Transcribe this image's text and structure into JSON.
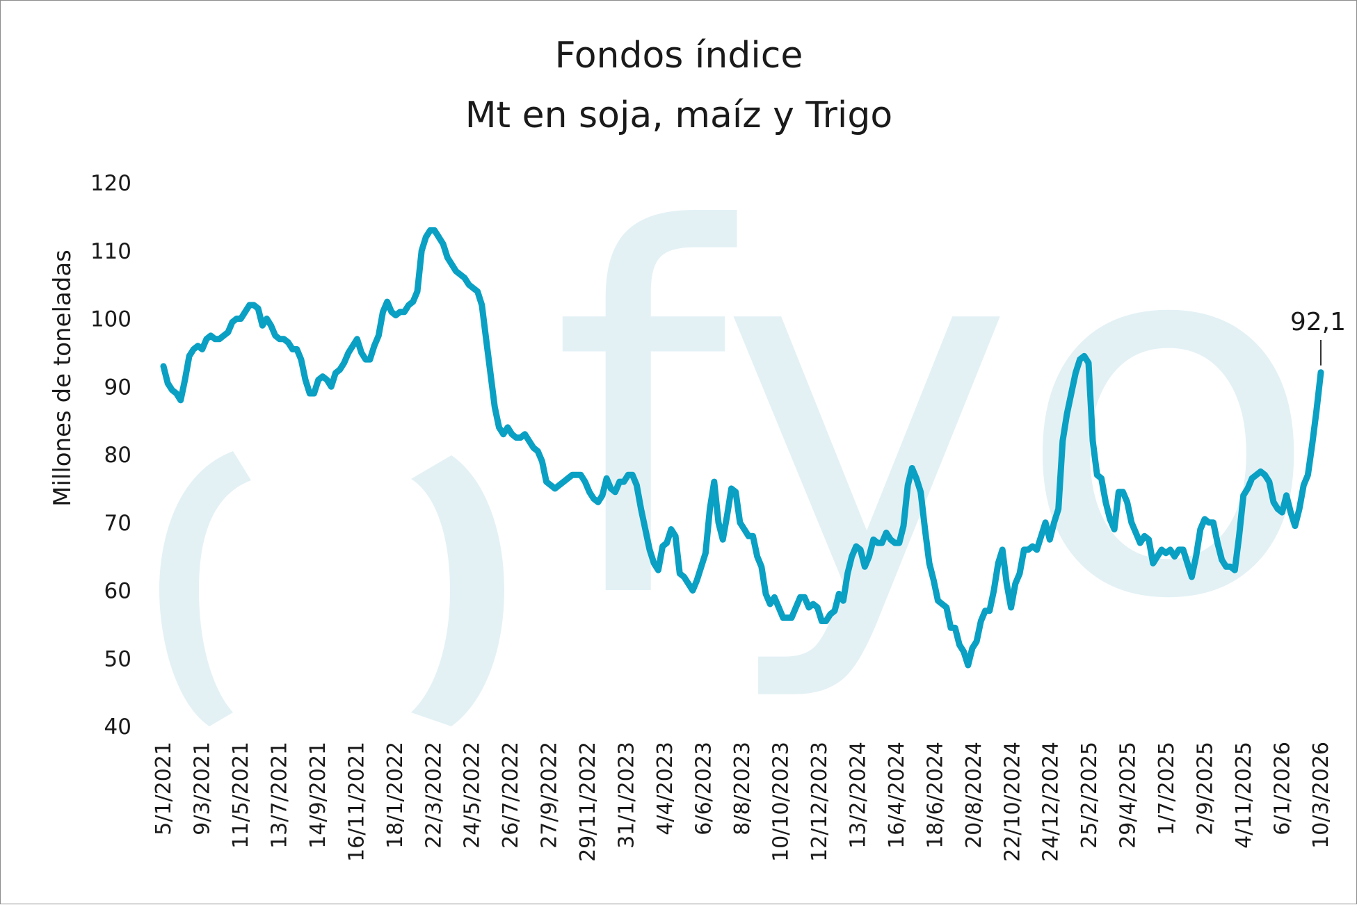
{
  "watermark": {
    "text": "fyo",
    "color": "#e3f1f5"
  },
  "chart_data": {
    "type": "line",
    "title": "Fondos índice",
    "subtitle": "Mt en soja, maíz y Trigo",
    "ylabel": "Millones de toneladas",
    "xlabel": "",
    "ylim": [
      40,
      120
    ],
    "yticks": [
      40,
      50,
      60,
      70,
      80,
      90,
      100,
      110,
      120
    ],
    "grid": false,
    "line_color": "#0aa0c4",
    "x_tick_labels": [
      "5/1/2021",
      "9/3/2021",
      "11/5/2021",
      "13/7/2021",
      "14/9/2021",
      "16/11/2021",
      "18/1/2022",
      "22/3/2022",
      "24/5/2022",
      "26/7/2022",
      "27/9/2022",
      "29/11/2022",
      "31/1/2023",
      "4/4/2023",
      "6/6/2023",
      "8/8/2023",
      "10/10/2023",
      "12/12/2023",
      "13/2/2024",
      "16/4/2024",
      "18/6/2024",
      "20/8/2024",
      "22/10/2024",
      "24/12/2024",
      "25/2/2025",
      "29/4/2025",
      "1/7/2025",
      "2/9/2025",
      "4/11/2025",
      "6/1/2026",
      "10/3/2026"
    ],
    "series": [
      {
        "values": [
          93,
          90.5,
          89.5,
          89,
          88,
          91,
          94.5,
          95.5,
          96,
          95.5,
          97,
          97.5,
          97,
          97,
          97.5,
          98,
          99.5,
          100,
          100,
          101,
          102,
          102,
          101.5,
          99,
          100,
          99,
          97.5,
          97,
          97,
          96.5,
          95.5,
          95.5,
          94,
          91,
          89,
          89,
          91,
          91.5,
          91,
          90,
          92,
          92.5,
          93.5,
          95,
          96,
          97,
          95,
          94,
          94,
          96,
          97.5,
          101,
          102.5,
          101,
          100.5,
          101,
          101,
          102,
          102.5,
          104,
          110,
          112,
          113,
          113,
          112,
          111,
          109,
          108,
          107,
          106.5,
          106,
          105,
          104.5,
          104,
          102,
          97,
          92,
          87,
          84,
          83,
          84,
          83,
          82.5,
          82.5,
          83,
          82,
          81,
          80.5,
          79,
          76,
          75.5,
          75,
          75.5,
          76,
          76.5,
          77,
          77,
          77,
          76,
          74.5,
          73.5,
          73,
          74,
          76.5,
          75,
          74.5,
          76,
          76,
          77,
          77,
          75.5,
          72,
          69,
          66,
          64,
          63,
          66.5,
          67,
          69,
          68,
          62.5,
          62,
          61,
          60,
          61.5,
          63.5,
          65.5,
          72,
          76,
          70,
          67.5,
          71,
          75,
          74.5,
          70,
          69,
          68,
          68,
          65,
          63.5,
          59.5,
          58,
          59,
          57.5,
          56,
          56,
          56,
          57.5,
          59,
          59,
          57.5,
          58,
          57.5,
          55.5,
          55.5,
          56.5,
          57,
          59.5,
          58.5,
          62.5,
          65,
          66.5,
          66,
          63.5,
          65,
          67.5,
          67,
          67,
          68.5,
          67.5,
          67,
          67,
          69.5,
          75.5,
          78,
          76.5,
          74.5,
          69,
          64,
          61.5,
          58.5,
          58,
          57.5,
          54.5,
          54.5,
          52,
          51,
          49,
          51.5,
          52.5,
          55.5,
          57,
          57,
          60,
          64,
          66,
          61,
          57.5,
          61,
          62.5,
          66,
          66,
          66.5,
          66,
          68,
          70,
          67.5,
          70,
          72,
          82,
          86,
          89,
          92,
          94,
          94.5,
          93.5,
          82,
          77,
          76.5,
          73,
          70.5,
          69,
          74.5,
          74.5,
          73,
          70,
          68.5,
          67,
          68,
          67.5,
          64,
          65,
          66,
          65.5,
          66,
          65,
          66,
          66,
          64,
          62,
          65,
          69,
          70.5,
          70,
          70,
          67,
          64.5,
          63.5,
          63.5,
          63,
          68,
          74,
          75,
          76.5,
          77,
          77.5,
          77,
          76,
          73,
          72,
          71.5,
          74,
          71.5,
          69.5,
          72,
          75.5,
          77,
          81.5,
          86.5,
          92.1
        ]
      }
    ],
    "annotations": [
      {
        "text": "92,1",
        "value": 92.1
      }
    ]
  }
}
